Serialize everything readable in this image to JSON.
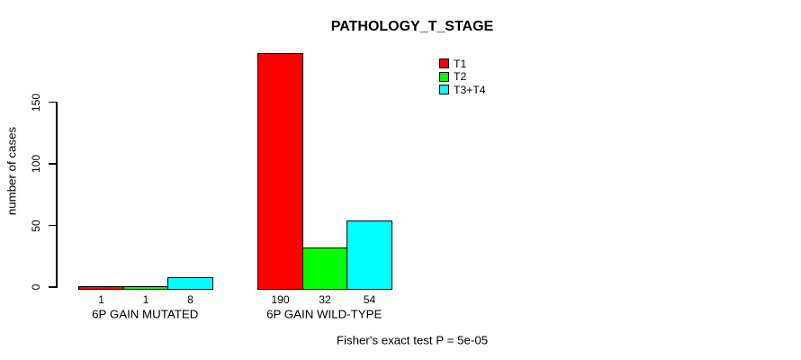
{
  "chart_data": {
    "type": "bar",
    "title": "PATHOLOGY_T_STAGE",
    "ylabel": "number of cases",
    "xlabel": "",
    "categories": [
      "6P GAIN MUTATED",
      "6P GAIN WILD-TYPE"
    ],
    "series": [
      {
        "name": "T1",
        "color": "#FF0000",
        "values": [
          1,
          190
        ]
      },
      {
        "name": "T2",
        "color": "#00FF00",
        "values": [
          1,
          32
        ]
      },
      {
        "name": "T3+T4",
        "color": "#00FFFF",
        "values": [
          8,
          54
        ]
      }
    ],
    "yticks": [
      0,
      50,
      100,
      150
    ],
    "ylim": [
      0,
      200
    ],
    "grid": false,
    "legend_position": "top-right",
    "bar_value_labels_shown": true,
    "annotation": "Fisher's exact test P = 5e-05",
    "background_color": "#FFFFFF",
    "axis_color": "#000000"
  }
}
